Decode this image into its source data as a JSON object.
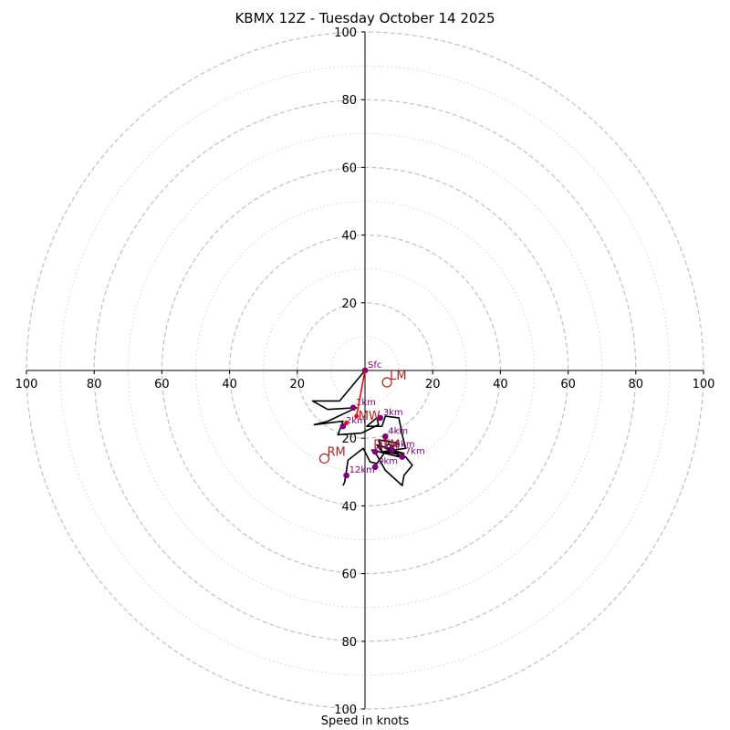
{
  "chart_data": {
    "type": "scatter",
    "title": "KBMX 12Z - Tuesday October 14 2025",
    "xlabel": "Speed in knots",
    "xlim": [
      -100,
      100
    ],
    "ylim": [
      -100,
      100
    ],
    "ring_major": [
      20,
      40,
      60,
      80,
      100
    ],
    "ring_minor": [
      10,
      30,
      50,
      70,
      90
    ],
    "x_tick_labels": [
      "100",
      "80",
      "60",
      "40",
      "20",
      "20",
      "40",
      "60",
      "80",
      "100"
    ],
    "x_tick_values": [
      -100,
      -80,
      -60,
      -40,
      -20,
      20,
      40,
      60,
      80,
      100
    ],
    "y_tick_labels": [
      "100",
      "80",
      "60",
      "40",
      "20",
      "20",
      "40",
      "60",
      "80",
      "100"
    ],
    "y_tick_values": [
      100,
      80,
      60,
      40,
      20,
      -20,
      -40,
      -60,
      -80,
      -100
    ],
    "hodograph_x": [
      0,
      -7.5,
      -15.5,
      -11,
      -2.5,
      -11,
      -15,
      -6.5,
      -8,
      -1,
      4,
      3.5,
      0.5,
      5,
      6,
      10,
      11,
      12,
      5,
      4,
      10,
      7,
      3.5,
      5,
      8.5,
      12,
      14,
      11.5,
      11,
      6,
      3.5,
      2,
      10,
      7,
      6,
      11.5,
      6,
      3.5,
      1.5,
      -0.5,
      -5,
      -6,
      -6.5
    ],
    "hodograph_y": [
      0,
      -9,
      -9,
      -11.5,
      -11,
      -15,
      -16,
      -15,
      -19,
      -18.5,
      -16,
      -14,
      -16.5,
      -16.5,
      -13.5,
      -14,
      -19,
      -23,
      -24,
      -20.5,
      -21.5,
      -23,
      -22,
      -24,
      -24.5,
      -25.5,
      -28,
      -31,
      -34,
      -29.5,
      -25,
      -23.5,
      -25.5,
      -21.5,
      -23,
      -24.5,
      -24,
      -27.5,
      -27,
      -23,
      -26.5,
      -33,
      -34
    ],
    "levels": [
      {
        "label": "Sfc",
        "x": 0,
        "y": 0
      },
      {
        "label": "1km",
        "x": -3.5,
        "y": -11
      },
      {
        "label": "2km",
        "x": -6.5,
        "y": -16.5
      },
      {
        "label": "3km",
        "x": 4.5,
        "y": -14
      },
      {
        "label": "4km",
        "x": 6,
        "y": -19.5
      },
      {
        "label": "5km",
        "x": 8,
        "y": -23.5
      },
      {
        "label": "6km",
        "x": 3,
        "y": -24
      },
      {
        "label": "7km",
        "x": 11,
        "y": -25.5
      },
      {
        "label": "9km",
        "x": 3,
        "y": -28.5
      },
      {
        "label": "12km",
        "x": -5.5,
        "y": -31
      }
    ],
    "storm_motion": [
      {
        "label": "LM",
        "x": 6.5,
        "y": -3.5
      },
      {
        "label": "RM",
        "x": -12,
        "y": -26
      }
    ],
    "mean_wind": {
      "label": "MW",
      "x": -2.5,
      "y": -13.5
    },
    "deviant_tornado": {
      "label": "DTM",
      "x": 2.5,
      "y": -22
    },
    "shear_marker": {
      "label": "",
      "x": -5.5,
      "y": -15.5
    },
    "colors": {
      "hodograph": "#000000",
      "levels": "#800080",
      "storm_motion": "#b22222",
      "shear_vector": "#ff0000",
      "ring_major": "#c0c0c0",
      "ring_minor": "#d3d3d3"
    }
  }
}
